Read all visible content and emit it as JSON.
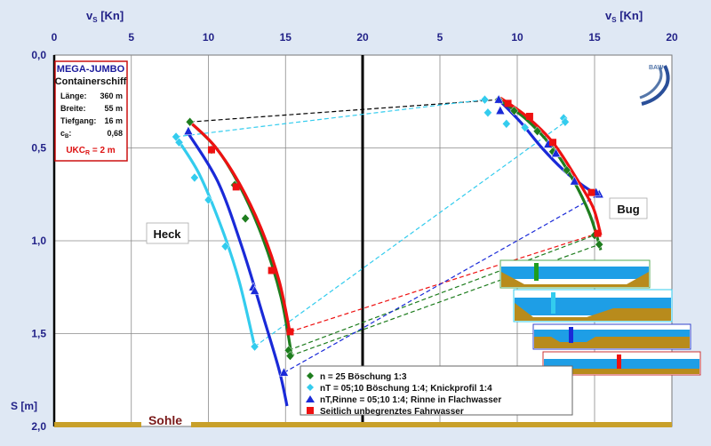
{
  "chart_data": {
    "type": "scatter",
    "axes": {
      "top_label_left": "v",
      "top_label_left_sub": "S",
      "top_label_left_unit": " [Kn]",
      "top_label_right": "v",
      "top_label_right_sub": "S",
      "top_label_right_unit": " [Kn]",
      "x_left_ticks": [
        "0",
        "5",
        "10",
        "15",
        "20"
      ],
      "x_left_range": [
        0,
        20
      ],
      "x_right_ticks": [
        "5",
        "10",
        "15",
        "20"
      ],
      "x_right_range": [
        0,
        20
      ],
      "y_label": "S [m]",
      "y_ticks": [
        "0,0",
        "0,5",
        "1,0",
        "1,5",
        "2,0"
      ],
      "y_range": [
        0,
        2.0
      ],
      "y_inverted": true,
      "grid": true
    },
    "info_box": {
      "title": "MEGA-JUMBO",
      "subtitle": "Containerschiff",
      "rows": [
        {
          "label": "Länge:",
          "value": "360 m"
        },
        {
          "label": "Breite:",
          "value": "55 m"
        },
        {
          "label": "Tiefgang:",
          "value": "16 m"
        },
        {
          "label": "c",
          "label_sub": "B",
          "label_after": ":",
          "value": "0,68"
        }
      ],
      "ukc_main": "UKC",
      "ukc_sub": "R",
      "ukc_value": " = 2 m"
    },
    "labels": {
      "heck": "Heck",
      "bug": "Bug",
      "sohle": "Sohle",
      "logo": "BAW"
    },
    "series": [
      {
        "name": "n = 25  Böschung 1:3",
        "color": "#1e7d1e",
        "marker": "diamond",
        "heck_points": [
          [
            8.8,
            0.36
          ],
          [
            10.2,
            0.51
          ],
          [
            11.7,
            0.7
          ],
          [
            12.4,
            0.88
          ],
          [
            15.2,
            1.59
          ],
          [
            15.3,
            1.62
          ]
        ],
        "heck_curve": [
          [
            8.8,
            0.36
          ],
          [
            10.5,
            0.5
          ],
          [
            12.0,
            0.7
          ],
          [
            13.5,
            0.98
          ],
          [
            14.7,
            1.3
          ],
          [
            15.4,
            1.62
          ]
        ],
        "bug_points": [
          [
            8.8,
            0.24
          ],
          [
            9.8,
            0.3
          ],
          [
            11.3,
            0.41
          ],
          [
            12.3,
            0.52
          ],
          [
            13.2,
            0.62
          ],
          [
            15.0,
            0.97
          ],
          [
            15.3,
            1.02
          ]
        ],
        "bug_curve": [
          [
            8.8,
            0.24
          ],
          [
            10.5,
            0.34
          ],
          [
            12.2,
            0.49
          ],
          [
            13.6,
            0.67
          ],
          [
            14.7,
            0.86
          ],
          [
            15.4,
            1.05
          ]
        ]
      },
      {
        "name": "nT = 05;10 Böschung 1:4; Knickprofil 1:4",
        "color": "#33ccee",
        "marker": "diamond",
        "heck_points": [
          [
            7.9,
            0.44
          ],
          [
            8.1,
            0.47
          ],
          [
            9.1,
            0.66
          ],
          [
            10.0,
            0.78
          ],
          [
            11.1,
            1.03
          ],
          [
            13.0,
            1.57
          ]
        ],
        "heck_curve": [
          [
            7.8,
            0.43
          ],
          [
            9.4,
            0.64
          ],
          [
            10.9,
            0.94
          ],
          [
            12.0,
            1.22
          ],
          [
            13.0,
            1.57
          ]
        ],
        "bug_points": [
          [
            7.9,
            0.24
          ],
          [
            8.1,
            0.31
          ],
          [
            9.3,
            0.37
          ],
          [
            10.5,
            0.39
          ],
          [
            13.0,
            0.34
          ],
          [
            13.1,
            0.36
          ]
        ],
        "bug_curve": []
      },
      {
        "name": "nT,Rinne = 05;10 1:4; Rinne in Flachwasser",
        "color": "#1a2ad8",
        "marker": "triangle",
        "heck_points": [
          [
            8.7,
            0.41
          ],
          [
            12.9,
            1.25
          ],
          [
            13.0,
            1.27
          ],
          [
            14.9,
            1.71
          ]
        ],
        "heck_curve": [
          [
            8.6,
            0.41
          ],
          [
            10.6,
            0.68
          ],
          [
            12.2,
            1.04
          ],
          [
            13.6,
            1.42
          ],
          [
            14.6,
            1.7
          ],
          [
            15.1,
            1.89
          ]
        ],
        "bug_points": [
          [
            8.8,
            0.24
          ],
          [
            8.9,
            0.3
          ],
          [
            12.0,
            0.48
          ],
          [
            12.5,
            0.53
          ],
          [
            13.7,
            0.68
          ],
          [
            15.3,
            0.75
          ],
          [
            15.1,
            0.74
          ]
        ],
        "bug_curve": [
          [
            8.8,
            0.24
          ],
          [
            10.2,
            0.36
          ],
          [
            11.6,
            0.5
          ],
          [
            13.0,
            0.62
          ],
          [
            14.2,
            0.7
          ],
          [
            15.3,
            0.76
          ]
        ]
      },
      {
        "name": "Seitlich unbegrenztes Fahrwasser",
        "color": "#ee1111",
        "marker": "square",
        "heck_points": [
          [
            10.2,
            0.51
          ],
          [
            11.8,
            0.71
          ],
          [
            14.1,
            1.16
          ],
          [
            15.3,
            1.49
          ]
        ],
        "heck_curve": [
          [
            8.8,
            0.36
          ],
          [
            10.4,
            0.49
          ],
          [
            12.0,
            0.69
          ],
          [
            13.5,
            0.95
          ],
          [
            14.6,
            1.22
          ],
          [
            15.3,
            1.5
          ]
        ],
        "bug_points": [
          [
            9.4,
            0.26
          ],
          [
            10.8,
            0.33
          ],
          [
            12.3,
            0.47
          ],
          [
            14.8,
            0.74
          ],
          [
            15.2,
            0.96
          ]
        ],
        "bug_curve": [
          [
            8.9,
            0.23
          ],
          [
            10.6,
            0.33
          ],
          [
            12.3,
            0.47
          ],
          [
            13.8,
            0.66
          ],
          [
            14.9,
            0.82
          ],
          [
            15.4,
            0.97
          ]
        ]
      }
    ],
    "connectors": [
      {
        "color": "#1e7d1e",
        "from_heck": [
          15.3,
          1.62
        ],
        "to_bug": [
          15.3,
          1.02
        ]
      },
      {
        "color": "#1e7d1e",
        "from_heck": [
          15.2,
          1.59
        ],
        "to_bug": [
          15.0,
          0.97
        ]
      },
      {
        "color": "#ee1111",
        "from_heck": [
          15.3,
          1.49
        ],
        "to_bug": [
          15.2,
          0.96
        ]
      },
      {
        "color": "#33ccee",
        "from_heck": [
          13.0,
          1.57
        ],
        "to_bug": [
          13.1,
          0.36
        ]
      },
      {
        "color": "#1a2ad8",
        "from_heck": [
          14.9,
          1.71
        ],
        "to_bug": [
          15.3,
          0.75
        ]
      },
      {
        "color": "#000000",
        "from_heck": [
          8.8,
          0.36
        ],
        "to_bug": [
          8.8,
          0.24
        ]
      },
      {
        "color": "#33ccee",
        "from_heck": [
          7.9,
          0.44
        ],
        "to_bug": [
          7.9,
          0.24
        ]
      }
    ]
  },
  "colors": {
    "background": "#dfe8f4",
    "plot_bg": "#ffffff",
    "axis_text": "#222288",
    "sohle": "#c8a02a",
    "water": "#1e9ee6",
    "bed": "#b88b1c"
  }
}
